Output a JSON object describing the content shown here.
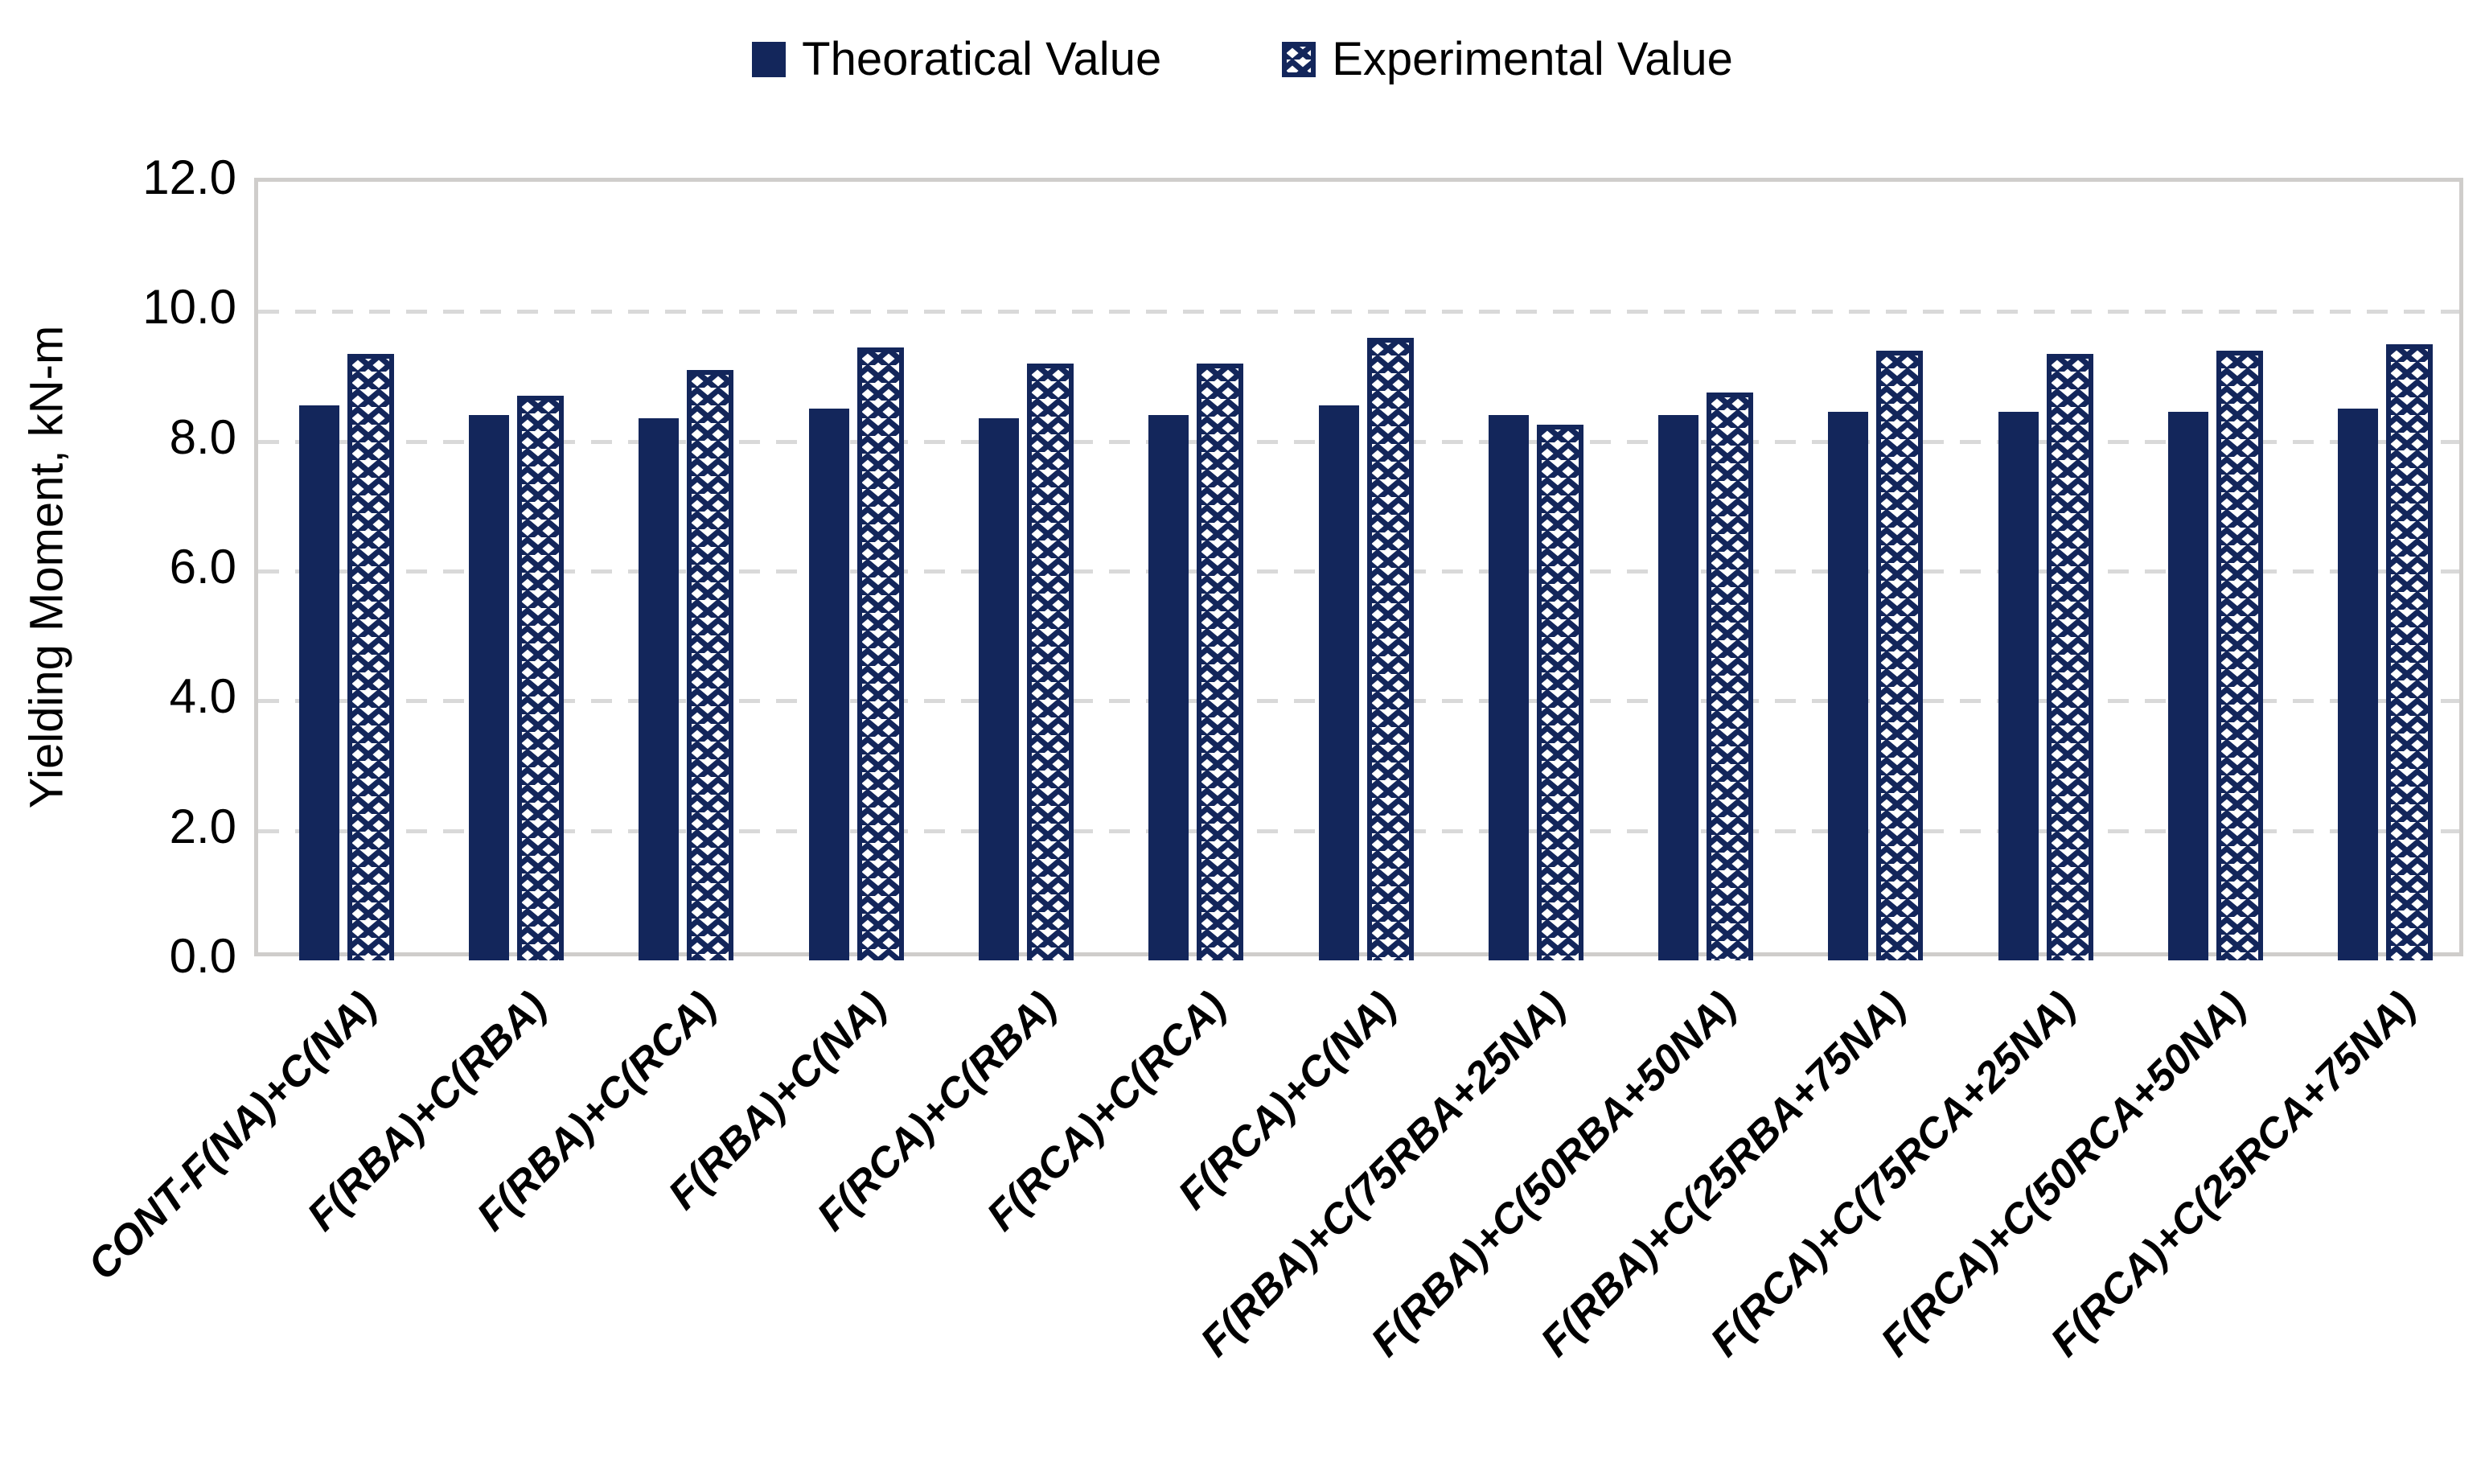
{
  "legend": {
    "items": [
      {
        "label": "Theoratical Value",
        "swatch": "solid-navy-square"
      },
      {
        "label": "Experimental Value",
        "swatch": "navy-chevron-pattern-square"
      }
    ]
  },
  "y_axis": {
    "title": "Yielding Moment, kN-m",
    "tick_labels": [
      "0.0",
      "2.0",
      "4.0",
      "6.0",
      "8.0",
      "10.0",
      "12.0"
    ],
    "min": 0,
    "max": 12,
    "step": 2
  },
  "chart_data": {
    "type": "bar",
    "title": "",
    "xlabel": "",
    "ylabel": "Yielding Moment, kN-m",
    "ylim": [
      0,
      12
    ],
    "grid": "dashed horizontal gridlines every 2.0",
    "legend_position": "top-center",
    "categories": [
      "CONT-F(NA)+C(NA)",
      "F(RBA)+C(RBA)",
      "F(RBA)+C(RCA)",
      "F(RBA)+C(NA)",
      "F(RCA)+C(RBA)",
      "F(RCA)+C(RCA)",
      "F(RCA)+C(NA)",
      "F(RBA)+C(75RBA+25NA)",
      "F(RBA)+C(50RBA+50NA)",
      "F(RBA)+C(25RBA+75NA)",
      "F(RCA)+C(75RCA+25NA)",
      "F(RCA)+C(50RCA+50NA)",
      "F(RCA)+C(25RCA+75NA)"
    ],
    "series": [
      {
        "name": "Theoratical Value",
        "style": "solid",
        "values": [
          8.55,
          8.4,
          8.35,
          8.5,
          8.35,
          8.4,
          8.55,
          8.4,
          8.4,
          8.45,
          8.45,
          8.45,
          8.5
        ]
      },
      {
        "name": "Experimental Value",
        "style": "pattern",
        "values": [
          9.35,
          8.7,
          9.1,
          9.45,
          9.2,
          9.2,
          9.6,
          8.25,
          8.75,
          9.4,
          9.35,
          9.4,
          9.5
        ]
      }
    ],
    "colors": {
      "navy": "#13265b",
      "pattern_bg": "#ffffff",
      "gridline": "#d9d9d9",
      "plot_border": "#cfcdcb",
      "text": "#000000"
    }
  }
}
